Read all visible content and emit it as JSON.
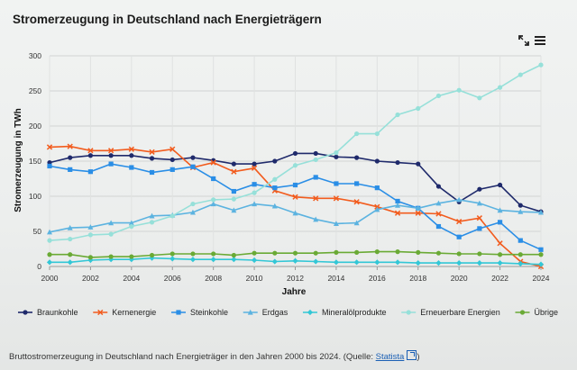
{
  "title": "Stromerzeugung in Deutschland nach Energieträgern",
  "caption": {
    "text": "Bruttostromerzeugung in Deutschland nach Energieträger in den Jahren 2000 bis 2024.",
    "source_prefix": "(Quelle:",
    "source_link": "Statista",
    "source_suffix": ")"
  },
  "icons": {
    "expand": "expand-icon",
    "menu": "hamburger-menu-icon"
  },
  "chart_data": {
    "type": "line",
    "xlabel": "Jahre",
    "ylabel": "Stromerzeugung in TWh",
    "xlim": [
      2000,
      2024
    ],
    "ylim": [
      0,
      300
    ],
    "xticks": [
      "2000",
      "2002",
      "2004",
      "2006",
      "2008",
      "2010",
      "2012",
      "2014",
      "2016",
      "2018",
      "2020",
      "2022",
      "2024"
    ],
    "yticks": [
      "0",
      "50",
      "100",
      "150",
      "200",
      "250",
      "300"
    ],
    "grid": true,
    "legend_position": "bottom",
    "x": [
      2000,
      2001,
      2002,
      2003,
      2004,
      2005,
      2006,
      2007,
      2008,
      2009,
      2010,
      2011,
      2012,
      2013,
      2014,
      2015,
      2016,
      2017,
      2018,
      2019,
      2020,
      2021,
      2022,
      2023,
      2024
    ],
    "series": [
      {
        "name": "Braunkohle",
        "color": "#1f2a6b",
        "marker": "circle",
        "values": [
          148,
          155,
          158,
          158,
          158,
          154,
          152,
          155,
          151,
          146,
          146,
          150,
          161,
          161,
          156,
          155,
          150,
          148,
          146,
          114,
          92,
          110,
          116,
          87,
          78
        ]
      },
      {
        "name": "Kernenergie",
        "color": "#f25c1e",
        "marker": "x",
        "values": [
          170,
          171,
          165,
          165,
          167,
          163,
          167,
          141,
          148,
          135,
          140,
          108,
          99,
          97,
          97,
          92,
          85,
          76,
          76,
          75,
          64,
          69,
          33,
          7,
          0
        ]
      },
      {
        "name": "Steinkohle",
        "color": "#2a8ee6",
        "marker": "square",
        "values": [
          143,
          138,
          135,
          146,
          141,
          134,
          138,
          142,
          125,
          107,
          117,
          112,
          116,
          127,
          118,
          118,
          112,
          93,
          83,
          57,
          42,
          54,
          63,
          37,
          24
        ]
      },
      {
        "name": "Erdgas",
        "color": "#5cb3e0",
        "marker": "triangle",
        "values": [
          49,
          55,
          56,
          62,
          62,
          72,
          73,
          77,
          89,
          80,
          89,
          86,
          76,
          67,
          61,
          62,
          81,
          87,
          83,
          90,
          95,
          90,
          80,
          78,
          77
        ]
      },
      {
        "name": "Mineralölprodukte",
        "color": "#33c7d6",
        "marker": "diamond",
        "values": [
          6,
          6,
          9,
          10,
          10,
          12,
          11,
          10,
          10,
          10,
          9,
          7,
          8,
          7,
          6,
          6,
          6,
          6,
          5,
          5,
          5,
          5,
          5,
          4,
          3
        ]
      },
      {
        "name": "Erneuerbare Energien",
        "color": "#96e0d9",
        "marker": "circle",
        "values": [
          37,
          39,
          45,
          46,
          57,
          63,
          72,
          89,
          95,
          96,
          105,
          124,
          144,
          152,
          162,
          189,
          189,
          216,
          225,
          243,
          251,
          240,
          255,
          273,
          287
        ]
      },
      {
        "name": "Übrige",
        "color": "#6aaa35",
        "marker": "circle",
        "values": [
          17,
          17,
          13,
          14,
          14,
          16,
          18,
          18,
          18,
          16,
          19,
          19,
          19,
          19,
          20,
          20,
          21,
          21,
          20,
          19,
          18,
          18,
          17,
          17,
          17
        ]
      }
    ]
  }
}
